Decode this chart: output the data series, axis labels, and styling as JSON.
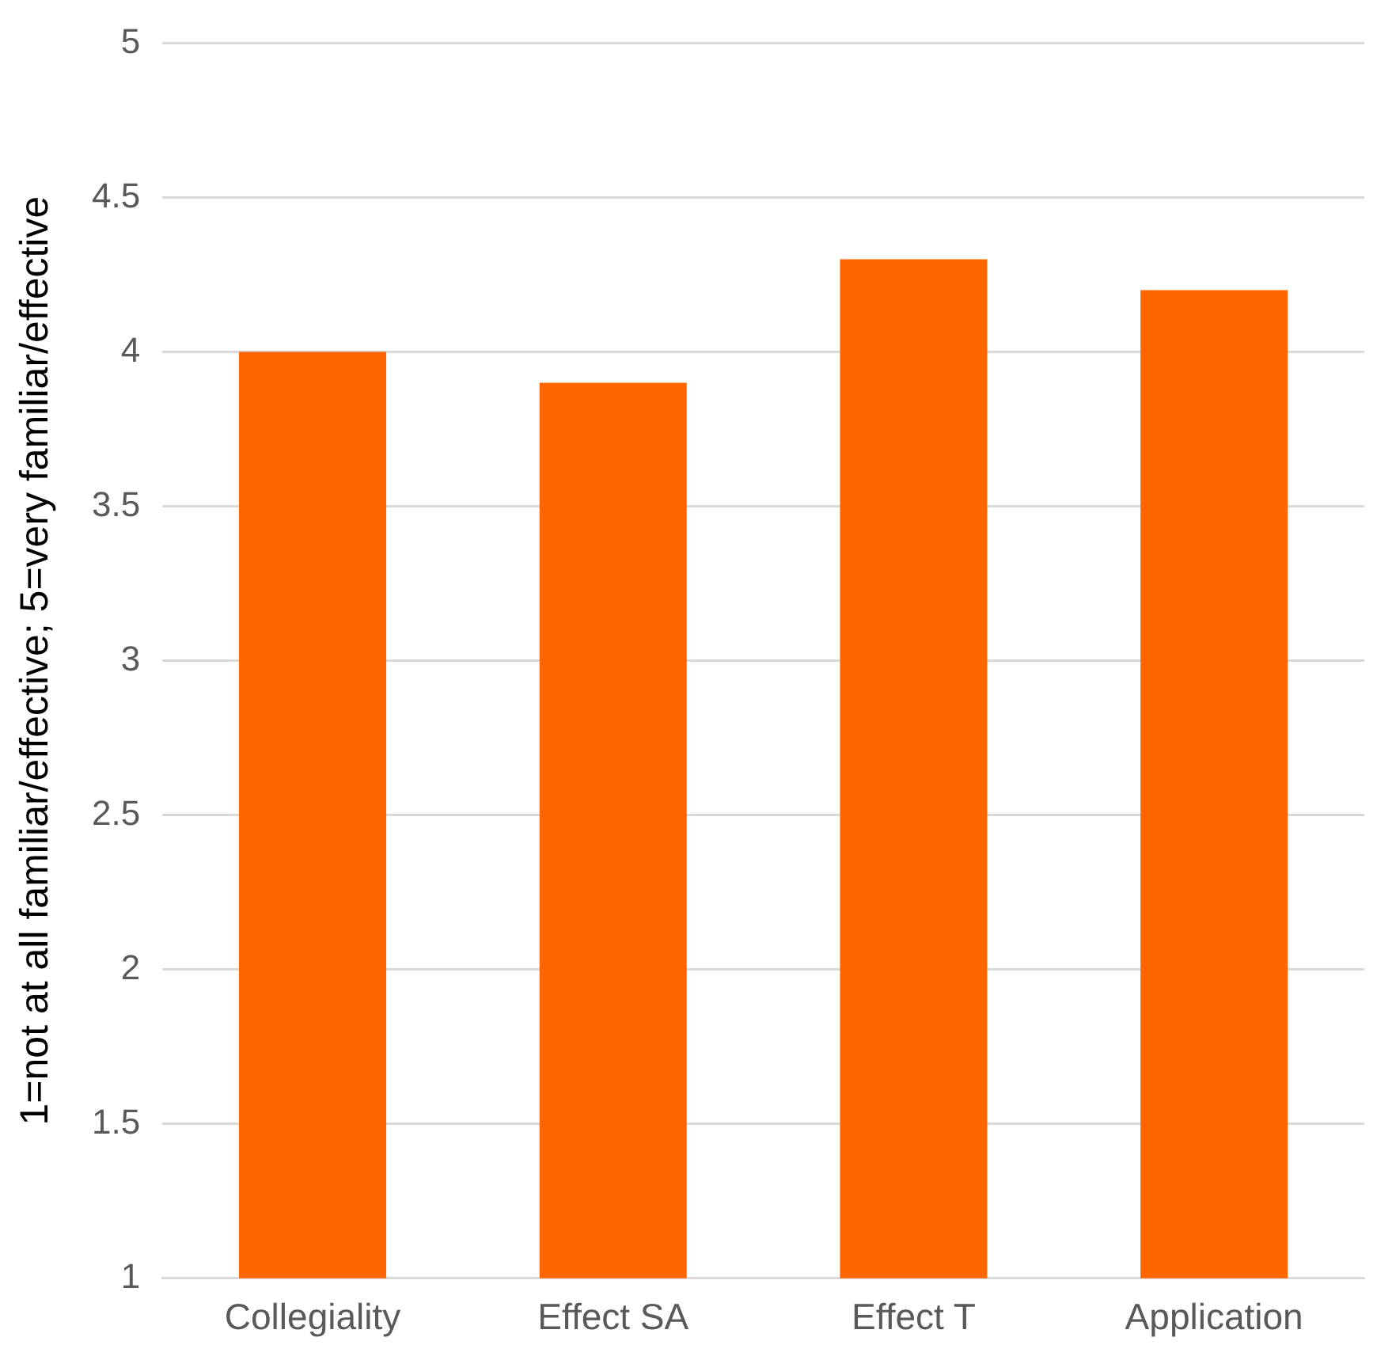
{
  "chart_data": {
    "type": "bar",
    "ylabel": "1=not at all familiar/effective; 5=very familiar/effective",
    "categories": [
      "Collegiality",
      "Effect SA",
      "Effect T",
      "Application"
    ],
    "values": [
      4.0,
      3.9,
      4.3,
      4.2
    ],
    "color": "#ff6600",
    "ylim": [
      1,
      5
    ],
    "yticks": [
      1,
      1.5,
      2,
      2.5,
      3,
      3.5,
      4,
      4.5,
      5
    ],
    "grid": "y",
    "legend": false
  }
}
